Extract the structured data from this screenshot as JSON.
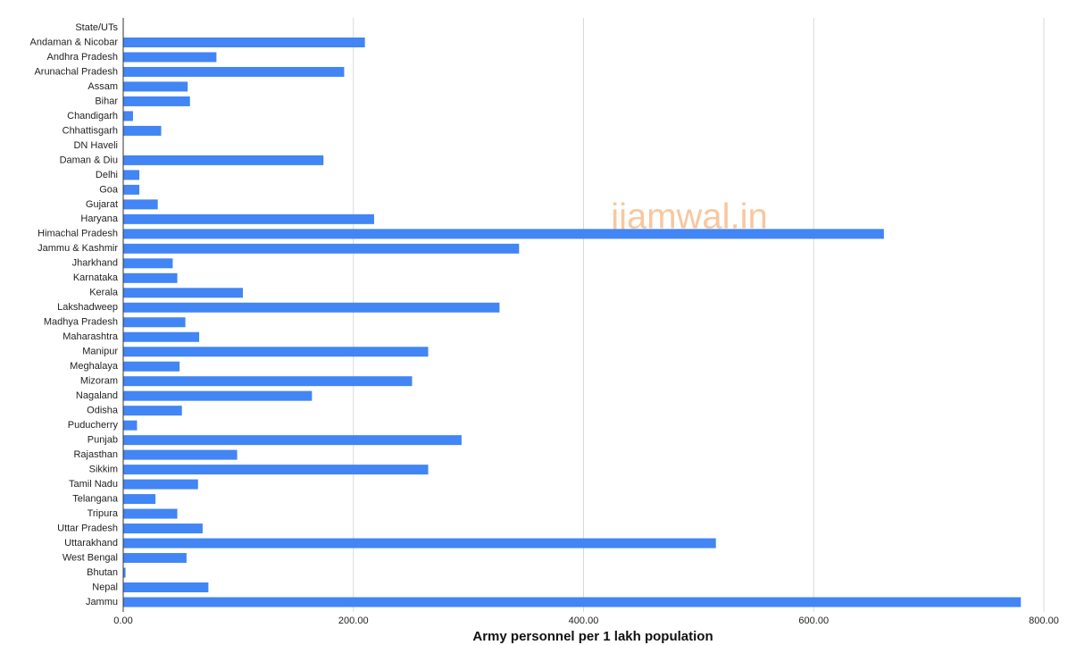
{
  "chart_data": {
    "type": "hbar",
    "x_label": "Army personnel per 1 lakh population",
    "annotation": "jjamwal.in",
    "color": "#4285f4",
    "grid": true,
    "categories": [
      "State/UTs",
      "Andaman & Nicobar",
      "Andhra Pradesh",
      "Arunachal Pradesh",
      "Assam",
      "Bihar",
      "Chandigarh",
      "Chhattisgarh",
      "DN Haveli",
      "Daman & Diu",
      "Delhi",
      "Goa",
      "Gujarat",
      "Haryana",
      "Himachal Pradesh",
      "Jammu & Kashmir",
      "Jharkhand",
      "Karnataka",
      "Kerala",
      "Lakshadweep",
      "Madhya Pradesh",
      "Maharashtra",
      "Manipur",
      "Meghalaya",
      "Mizoram",
      "Nagaland",
      "Odisha",
      "Puducherry",
      "Punjab",
      "Rajasthan",
      "Sikkim",
      "Tamil Nadu",
      "Telangana",
      "Tripura",
      "Uttar Pradesh",
      "Uttarakhand",
      "West Bengal",
      "Bhutan",
      "Nepal",
      "Jammu"
    ],
    "values": [
      null,
      210,
      81,
      192,
      56,
      58,
      8.5,
      33,
      0,
      174,
      14,
      14,
      30,
      218,
      661,
      344,
      43,
      47,
      104,
      327,
      54,
      66,
      265,
      49,
      251,
      164,
      51,
      12,
      294,
      99,
      265,
      65,
      28,
      47,
      69,
      515,
      55,
      2,
      74,
      780
    ],
    "xlim": [
      0,
      800
    ],
    "xticks": [
      {
        "value": 0,
        "label": "0.00"
      },
      {
        "value": 200,
        "label": "200.00"
      },
      {
        "value": 400,
        "label": "400.00"
      },
      {
        "value": 600,
        "label": "600.00"
      },
      {
        "value": 800,
        "label": "800.00"
      }
    ]
  }
}
